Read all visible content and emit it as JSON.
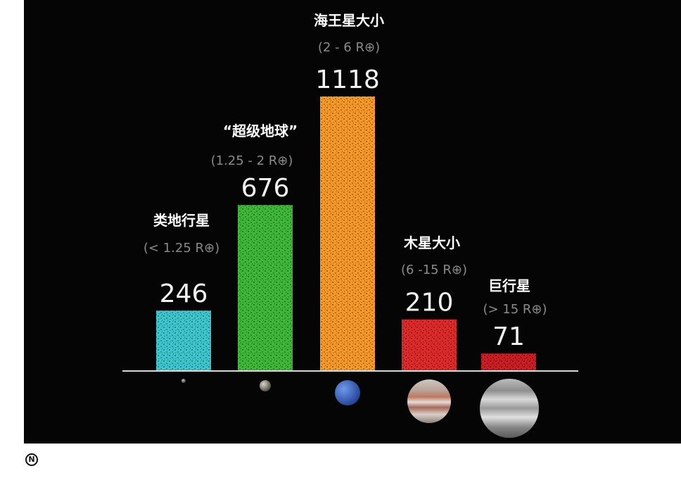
{
  "logo_text": "N",
  "colors": {
    "background": "#050505",
    "axis": "#d8d8d8"
  },
  "chart_data": {
    "type": "bar",
    "title": "",
    "xlabel": "",
    "ylabel": "",
    "ylim": [
      0,
      1118
    ],
    "grid": false,
    "categories": [
      {
        "name": "类地行星",
        "range": "(< 1.25 R⊕)",
        "value": 246,
        "color": "#3fc6cc",
        "planet": "small-rocky-planet"
      },
      {
        "name": "“超级地球”",
        "range": "(1.25 - 2 R⊕)",
        "value": 676,
        "color": "#3fb83a",
        "planet": "super-earth"
      },
      {
        "name": "海王星大小",
        "range": "(2 - 6 R⊕)",
        "value": 1118,
        "color": "#f59a2a",
        "planet": "neptune"
      },
      {
        "name": "木星大小",
        "range": "(6 -15 R⊕)",
        "value": 210,
        "color": "#dd2a2a",
        "planet": "jupiter"
      },
      {
        "name": "巨行星",
        "range": "(> 15 R⊕)",
        "value": 71,
        "color": "#c91e24",
        "planet": "giant-planet"
      }
    ]
  }
}
